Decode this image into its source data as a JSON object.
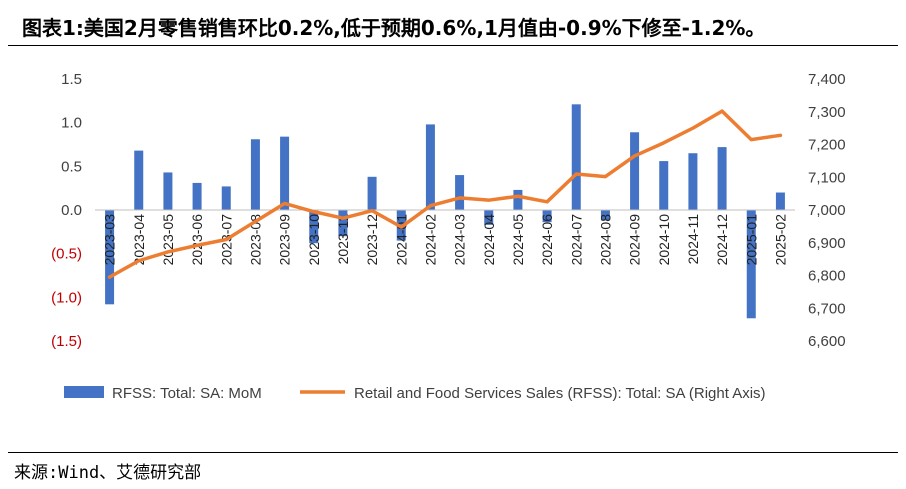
{
  "title": "图表1:美国2月零售销售环比0.2%,低于预期0.6%,1月值由-0.9%下修至-1.2%。",
  "source": "来源:Wind、艾德研究部",
  "colors": {
    "bar": "#4472C4",
    "line": "#ED7D31",
    "negative_label": "#C00000",
    "axis_label": "#404040"
  },
  "chart_data": {
    "type": "bar+line",
    "categories": [
      "2023-03",
      "2023-04",
      "2023-05",
      "2023-06",
      "2023-07",
      "2023-08",
      "2023-09",
      "2023-10",
      "2023-11",
      "2023-12",
      "2024-01",
      "2024-02",
      "2024-03",
      "2024-04",
      "2024-05",
      "2024-06",
      "2024-07",
      "2024-08",
      "2024-09",
      "2024-10",
      "2024-11",
      "2024-12",
      "2025-01",
      "2025-02"
    ],
    "series": [
      {
        "name": "RFSS: Total: SA: MoM",
        "type": "bar",
        "axis": "left",
        "values": [
          -1.08,
          0.68,
          0.43,
          0.31,
          0.27,
          0.81,
          0.84,
          -0.38,
          -0.3,
          0.38,
          -0.35,
          0.98,
          0.4,
          -0.17,
          0.23,
          -0.14,
          1.21,
          -0.12,
          0.89,
          0.56,
          0.65,
          0.72,
          -1.24,
          0.2
        ]
      },
      {
        "name": "Retail and Food Services Sales (RFSS): Total: SA (Right Axis)",
        "type": "line",
        "axis": "right",
        "values": [
          6795,
          6845,
          6872,
          6892,
          6910,
          6965,
          7020,
          6995,
          6975,
          6998,
          6948,
          7013,
          7037,
          7030,
          7042,
          7025,
          7110,
          7102,
          7165,
          7205,
          7250,
          7302,
          7215,
          7228
        ]
      }
    ],
    "left_axis": {
      "ylim": [
        -1.5,
        1.5
      ],
      "ticks": [
        "1.5",
        "1.0",
        "0.5",
        "0.0",
        "(0.5)",
        "(1.0)",
        "(1.5)"
      ]
    },
    "right_axis": {
      "ylim": [
        6600,
        7400
      ],
      "ticks": [
        "7,400",
        "7,300",
        "7,200",
        "7,100",
        "7,000",
        "6,900",
        "6,800",
        "6,700",
        "6,600"
      ]
    },
    "legend": {
      "position": "bottom"
    },
    "grid": false
  }
}
